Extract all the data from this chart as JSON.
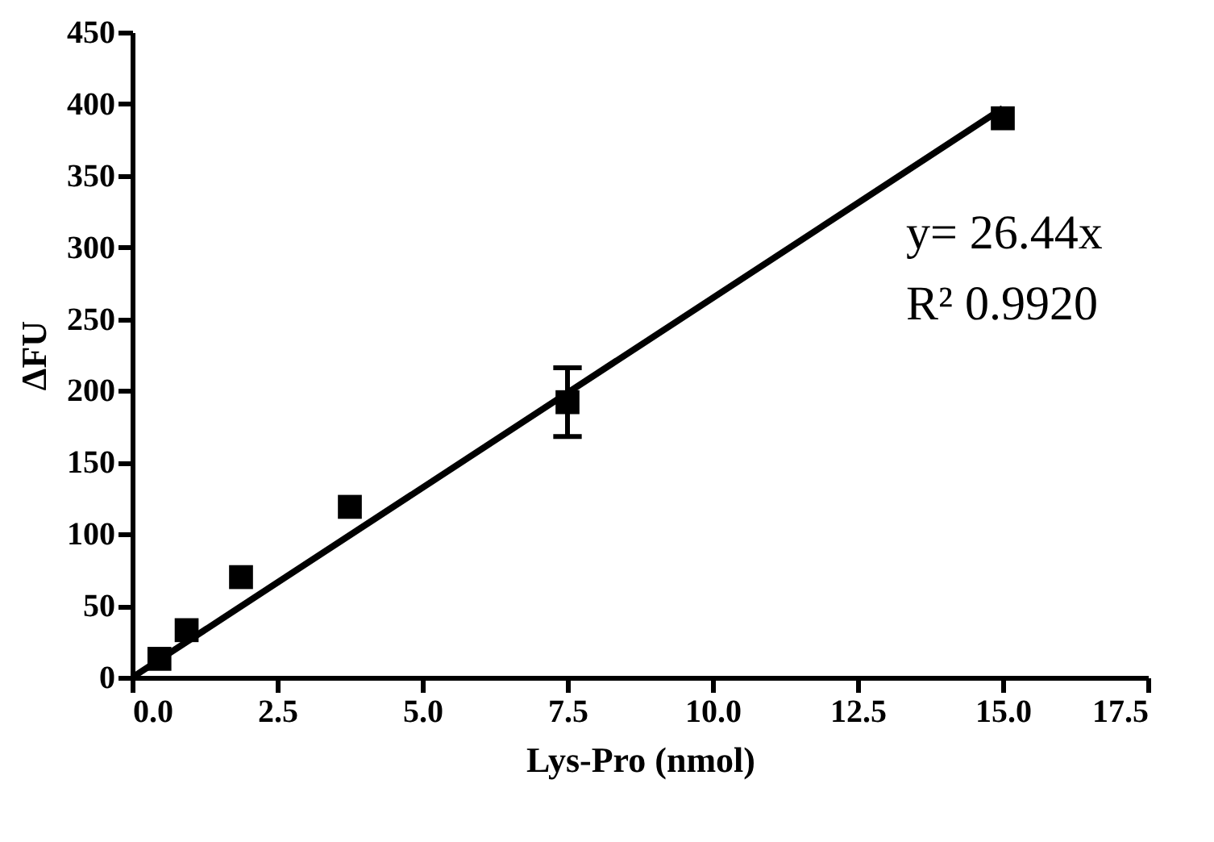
{
  "chart_data": {
    "type": "scatter",
    "xlabel": "Lys-Pro (nmol)",
    "ylabel": "ΔFU",
    "xlim": [
      0,
      17.5
    ],
    "xticks": [
      {
        "value": 0,
        "label": "0.0"
      },
      {
        "value": 2.5,
        "label": "2.5"
      },
      {
        "value": 5,
        "label": "5.0"
      },
      {
        "value": 7.5,
        "label": "7.5"
      },
      {
        "value": 10,
        "label": "10.0"
      },
      {
        "value": 12.5,
        "label": "12.5"
      },
      {
        "value": 15,
        "label": "15.0"
      },
      {
        "value": 17.5,
        "label": "17.5"
      }
    ],
    "ylim": [
      0,
      450
    ],
    "yticks": [
      0,
      50,
      100,
      150,
      200,
      250,
      300,
      350,
      400,
      450
    ],
    "annotations": [
      "y= 26.44x",
      "R² 0.9920"
    ],
    "series": [
      {
        "marker": "square",
        "color": "#000000",
        "x": [
          0.469,
          0.938,
          1.875,
          3.75,
          7.5,
          15
        ],
        "values": [
          13,
          33,
          70,
          119,
          192,
          390
        ],
        "errors": [
          null,
          null,
          null,
          null,
          [
            168,
            216
          ],
          null
        ]
      },
      {
        "type": "line",
        "line_style": "solid",
        "color": "#000000",
        "x": [
          0,
          15
        ],
        "values": [
          0,
          397
        ]
      }
    ]
  }
}
